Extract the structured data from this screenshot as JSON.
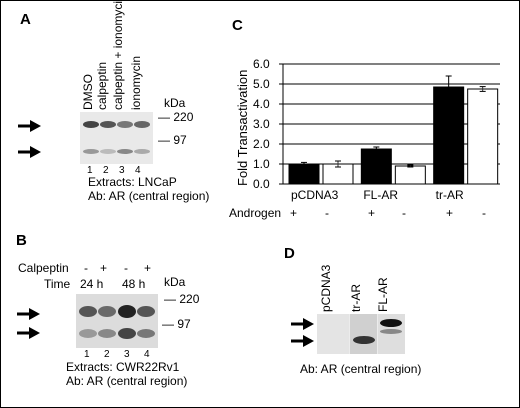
{
  "panelA": {
    "label": "A",
    "lanes": [
      "DMSO",
      "calpeptin",
      "calpeptin + ionomycin",
      "ionomycin"
    ],
    "kda": "kDa",
    "markers": [
      "220",
      "97"
    ],
    "lane_numbers": [
      "1",
      "2",
      "3",
      "4"
    ],
    "extracts": "Extracts: LNCaP",
    "ab": "Ab: AR (central region)"
  },
  "panelB": {
    "label": "B",
    "calpeptin_label": "Calpeptin",
    "calpeptin_values": [
      "-",
      "+",
      "-",
      "+"
    ],
    "time_label": "Time",
    "times": [
      "24 h",
      "48 h"
    ],
    "kda": "kDa",
    "markers": [
      "220",
      "97"
    ],
    "lane_numbers": [
      "1",
      "2",
      "3",
      "4"
    ],
    "extracts": "Extracts: CWR22Rv1",
    "ab": "Ab: AR (central region)"
  },
  "panelC": {
    "label": "C",
    "androgen_label": "Androgen",
    "androgen_values": [
      "+",
      "-",
      "+",
      "-",
      "+",
      "-"
    ]
  },
  "panelD": {
    "label": "D",
    "lanes": [
      "pCDNA3",
      "tr-AR",
      "FL-AR"
    ],
    "ab": "Ab: AR (central region)"
  },
  "chart_data": {
    "type": "bar",
    "ylabel": "Fold Transactivation",
    "ylim": [
      0,
      6
    ],
    "yticks": [
      "0.0",
      "1.0",
      "2.0",
      "3.0",
      "4.0",
      "5.0",
      "6.0"
    ],
    "categories": [
      "pCDNA3",
      "FL-AR",
      "tr-AR"
    ],
    "series": [
      {
        "values": [
          1.0,
          1.75,
          4.85
        ],
        "errors": [
          0.08,
          0.1,
          0.55
        ],
        "color": "#000000"
      },
      {
        "values": [
          1.0,
          0.9,
          4.75
        ],
        "errors": [
          0.15,
          0.05,
          0.12
        ],
        "color": "#ffffff"
      }
    ]
  }
}
